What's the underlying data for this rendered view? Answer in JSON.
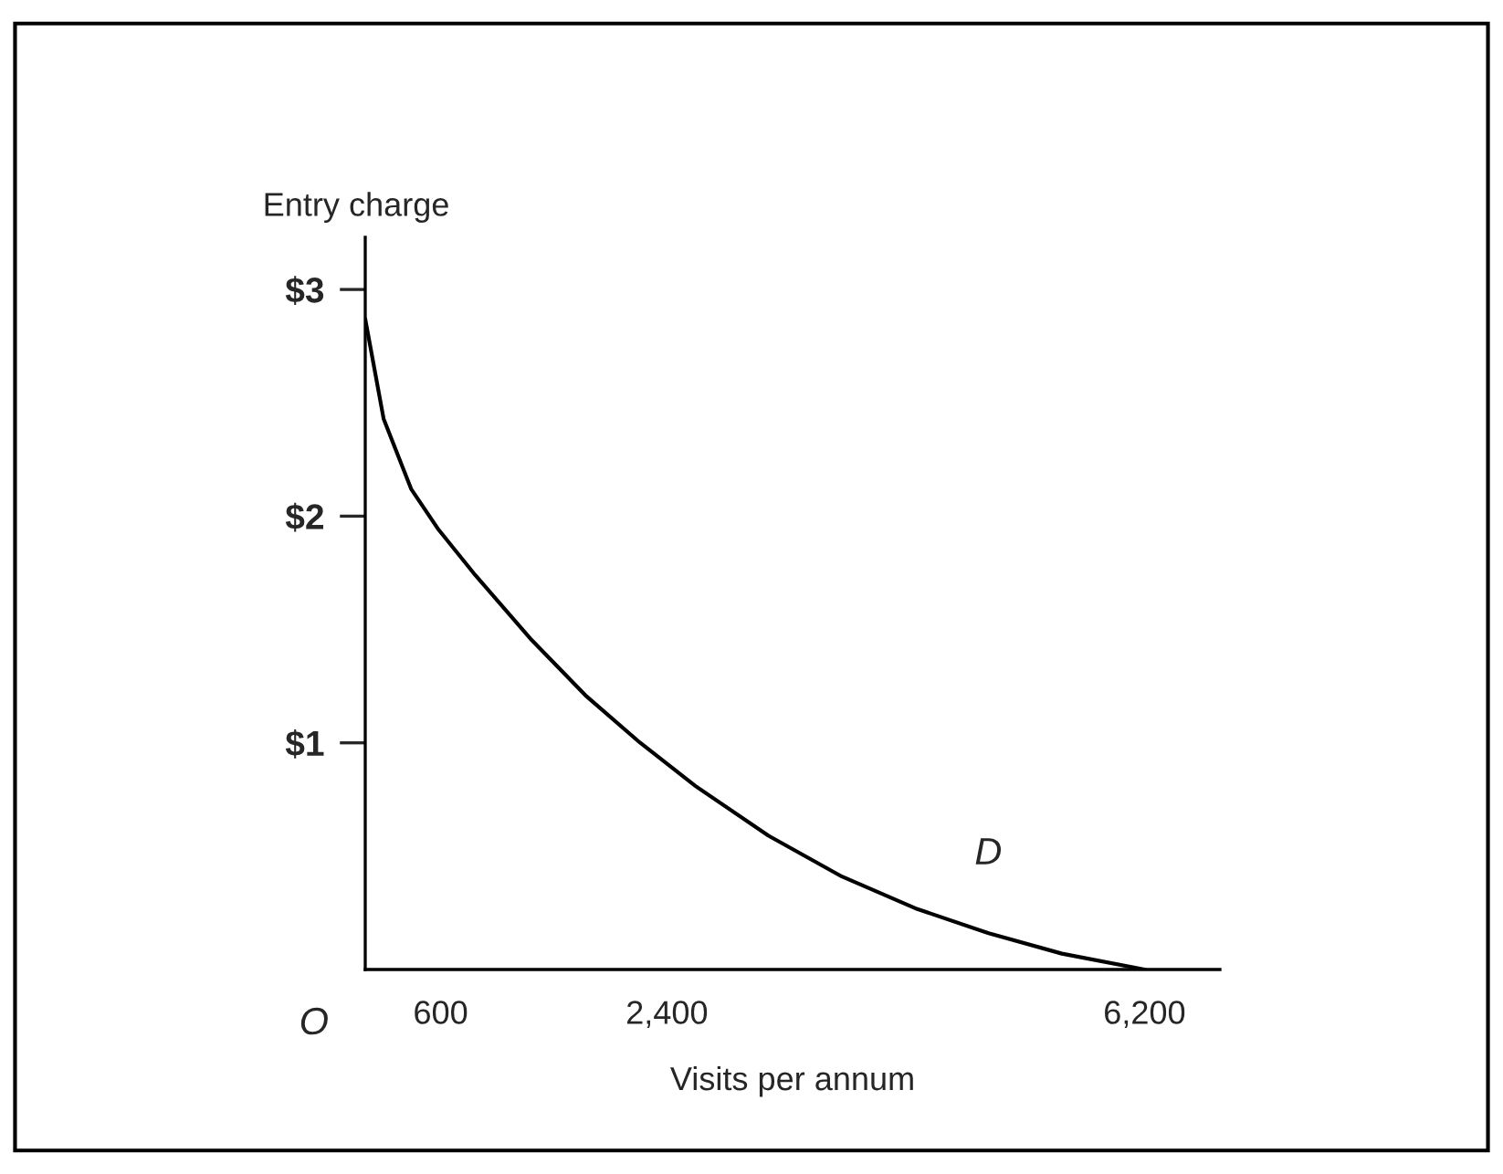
{
  "chart_data": {
    "type": "line",
    "xlabel": "Visits per annum",
    "ylabel": "Entry charge",
    "series": [
      {
        "color": "#000000",
        "x": [
          0,
          146,
          365,
          584,
          875,
          1313,
          1751,
          2188,
          2626,
          3209,
          3793,
          4376,
          4960,
          5543,
          6200
        ],
        "values": [
          2.87,
          2.43,
          2.12,
          1.94,
          1.74,
          1.46,
          1.21,
          1.0,
          0.81,
          0.59,
          0.41,
          0.27,
          0.16,
          0.07,
          0
        ]
      }
    ],
    "xlim": [
      0,
      6800
    ],
    "ylim": [
      0,
      3.23
    ],
    "xticks": [
      600,
      {
        "value": 2400,
        "label": "2,400"
      },
      {
        "value": 6200,
        "label": "6,200"
      }
    ],
    "yticks": [
      {
        "value": 1,
        "label": "$1"
      },
      {
        "value": 2,
        "label": "$2"
      },
      {
        "value": 3,
        "label": "$3"
      }
    ],
    "annotations": [
      "D",
      "O"
    ],
    "grid": false,
    "legend": false,
    "marker": "none",
    "line_style": "solid"
  }
}
